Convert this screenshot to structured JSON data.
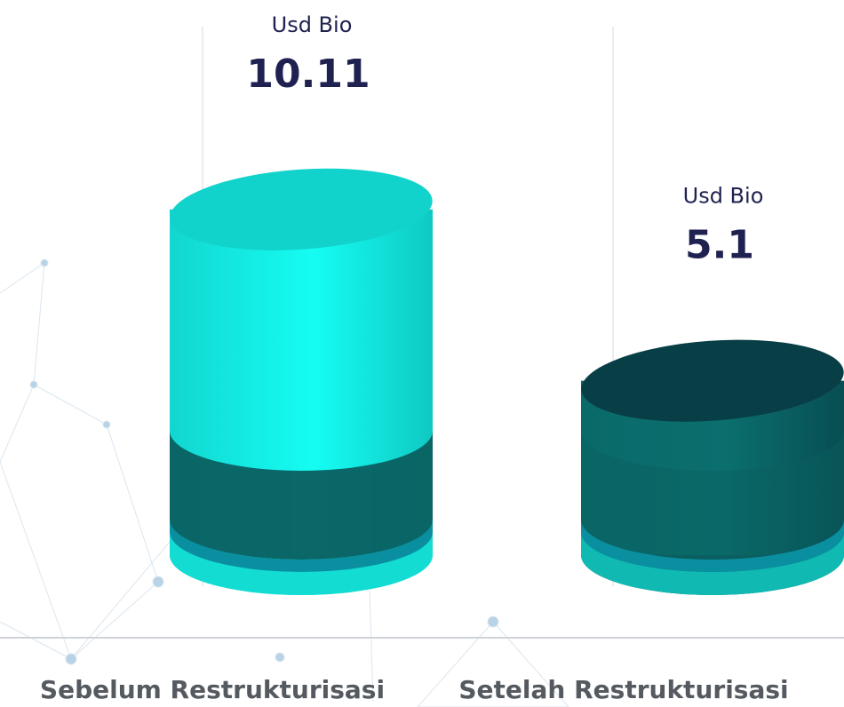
{
  "chart_data": {
    "type": "cylinder-bar",
    "value_unit": "Usd Bio",
    "categories": [
      "Sebelum Restrukturisasi",
      "Setelah Restrukturisasi"
    ],
    "values": [
      10.11,
      5.1
    ],
    "colors": [
      "#14ece3",
      "#0b5e60"
    ]
  }
}
